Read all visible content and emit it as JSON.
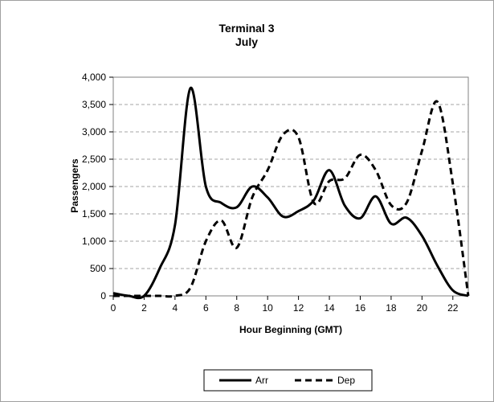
{
  "chart_data": {
    "type": "line",
    "title": "Terminal 3",
    "subtitle": "July",
    "xlabel": "Hour Beginning (GMT)",
    "ylabel": "Passengers",
    "xlim": [
      0,
      23
    ],
    "ylim": [
      0,
      4000
    ],
    "x_ticks": [
      0,
      2,
      4,
      6,
      8,
      10,
      12,
      14,
      16,
      18,
      20,
      22
    ],
    "y_ticks": [
      0,
      500,
      1000,
      1500,
      2000,
      2500,
      3000,
      3500,
      4000
    ],
    "y_tick_labels": [
      "0",
      "500",
      "1,000",
      "1,500",
      "2,000",
      "2,500",
      "3,000",
      "3,500",
      "4,000"
    ],
    "grid": "horizontal dashed",
    "legend_position": "bottom",
    "x": [
      0,
      1,
      2,
      3,
      4,
      5,
      6,
      7,
      8,
      9,
      10,
      11,
      12,
      13,
      14,
      15,
      16,
      17,
      18,
      19,
      20,
      21,
      22,
      23
    ],
    "series": [
      {
        "name": "Arr",
        "style": "solid",
        "color": "#000000",
        "values": [
          50,
          0,
          0,
          500,
          1300,
          3800,
          2000,
          1700,
          1620,
          2000,
          1800,
          1450,
          1550,
          1750,
          2300,
          1650,
          1420,
          1820,
          1320,
          1430,
          1100,
          550,
          100,
          0
        ]
      },
      {
        "name": "Dep",
        "style": "dashed",
        "color": "#000000",
        "values": [
          0,
          0,
          0,
          0,
          0,
          150,
          1000,
          1380,
          880,
          1800,
          2300,
          2950,
          2900,
          1700,
          2100,
          2150,
          2580,
          2300,
          1660,
          1700,
          2650,
          3550,
          2050,
          0
        ]
      }
    ]
  }
}
